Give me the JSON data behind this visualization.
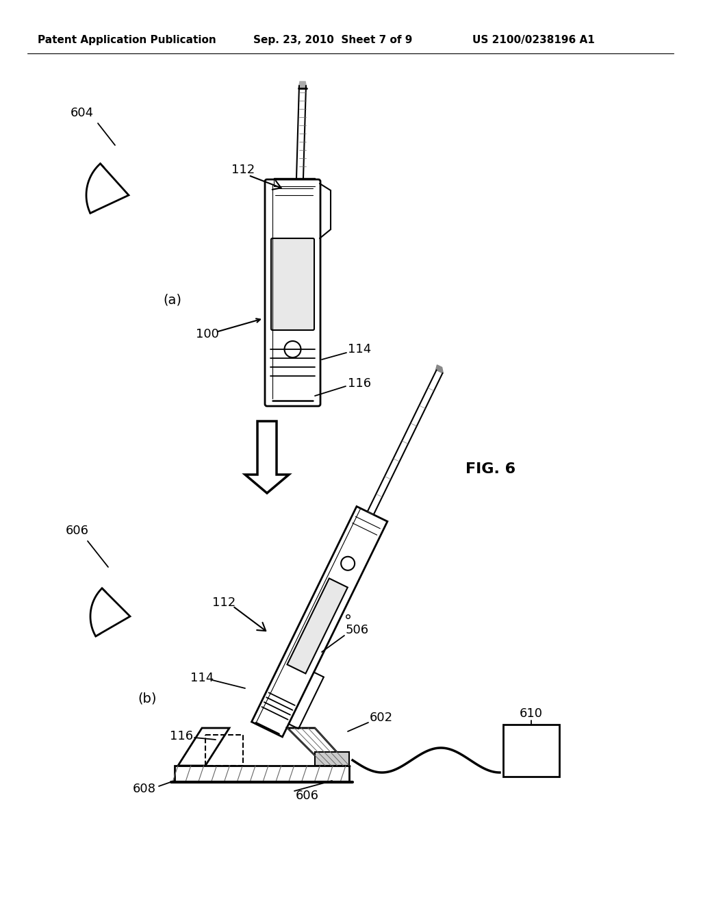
{
  "bg_color": "#ffffff",
  "header_text": "Patent Application Publication",
  "header_date": "Sep. 23, 2010  Sheet 7 of 9",
  "header_patent": "US 2100/0238196 A1",
  "fig_label": "FIG. 6",
  "text_color": "#000000",
  "line_color": "#000000",
  "gray_color": "#666666",
  "light_gray": "#aaaaaa"
}
